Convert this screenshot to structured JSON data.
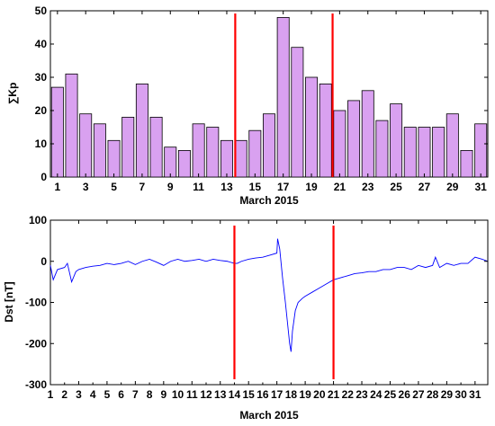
{
  "chart_data": [
    {
      "type": "bar",
      "xlabel": "March 2015",
      "ylabel": "∑Kp",
      "x": [
        1,
        2,
        3,
        4,
        5,
        6,
        7,
        8,
        9,
        10,
        11,
        12,
        13,
        14,
        15,
        16,
        17,
        18,
        19,
        20,
        21,
        22,
        23,
        24,
        25,
        26,
        27,
        28,
        29,
        30,
        31
      ],
      "values": [
        27,
        31,
        19,
        16,
        11,
        18,
        28,
        18,
        9,
        8,
        16,
        15,
        11,
        11,
        14,
        19,
        48,
        39,
        30,
        28,
        20,
        23,
        26,
        17,
        22,
        15,
        15,
        15,
        19,
        8,
        16
      ],
      "xlim": [
        0.5,
        31.5
      ],
      "ylim": [
        0,
        50
      ],
      "yticks": [
        0,
        10,
        20,
        30,
        40,
        50
      ],
      "xtick_labels": [
        "1",
        "3",
        "5",
        "7",
        "9",
        "11",
        "13",
        "15",
        "17",
        "19",
        "21",
        "23",
        "25",
        "27",
        "29",
        "31"
      ],
      "vlines": [
        13.6,
        20.5
      ],
      "bar_color": "#d9a1f0",
      "vline_color": "#ff0000",
      "grid": false
    },
    {
      "type": "line",
      "xlabel": "March 2015",
      "ylabel": "Dst [nT]",
      "xlim": [
        1,
        31.9
      ],
      "ylim": [
        -300,
        100
      ],
      "yticks": [
        -300,
        -200,
        -100,
        0,
        100
      ],
      "xticks": [
        1,
        3,
        5,
        7,
        9,
        11,
        13,
        15,
        17,
        19,
        21,
        23,
        25,
        27,
        29,
        31
      ],
      "xtick_labels": [
        "1",
        "3",
        "5",
        "7",
        "9",
        "11",
        "13",
        "15",
        "17",
        "19",
        "21",
        "23",
        "25",
        "27",
        "29",
        "31"
      ],
      "xtick_labels_minor": [
        "2",
        "4",
        "6",
        "8",
        "10",
        "12",
        "14",
        "16",
        "18",
        "20",
        "22",
        "24",
        "26",
        "28",
        "30"
      ],
      "vlines": [
        14,
        21
      ],
      "line_color": "#0000ff",
      "vline_color": "#ff0000",
      "grid": false,
      "series": [
        {
          "x": [
            1,
            1.2,
            1.5,
            2,
            2.2,
            2.5,
            2.8,
            3,
            3.5,
            4,
            4.5,
            5,
            5.5,
            6,
            6.5,
            7,
            7.5,
            8,
            8.5,
            9,
            9.5,
            10,
            10.5,
            11,
            11.5,
            12,
            12.5,
            13,
            13.5,
            14,
            14.2,
            14.5,
            15,
            15.5,
            16,
            16.5,
            17,
            17.05,
            17.2,
            17.4,
            17.6,
            17.75,
            17.9,
            18,
            18.1,
            18.3,
            18.5,
            18.8,
            19,
            19.5,
            20,
            20.5,
            21,
            21.5,
            22,
            22.5,
            23,
            23.5,
            24,
            24.5,
            25,
            25.5,
            26,
            26.5,
            27,
            27.5,
            28,
            28.2,
            28.5,
            29,
            29.5,
            30,
            30.5,
            31,
            31.5,
            31.9
          ],
          "y": [
            -10,
            -45,
            -20,
            -15,
            -5,
            -50,
            -25,
            -20,
            -15,
            -12,
            -10,
            -5,
            -8,
            -5,
            0,
            -8,
            0,
            5,
            -2,
            -10,
            0,
            5,
            0,
            2,
            5,
            0,
            5,
            2,
            0,
            -5,
            -5,
            0,
            5,
            8,
            10,
            15,
            20,
            55,
            30,
            -40,
            -100,
            -150,
            -200,
            -220,
            -170,
            -120,
            -100,
            -90,
            -85,
            -75,
            -65,
            -55,
            -45,
            -40,
            -35,
            -30,
            -28,
            -25,
            -25,
            -20,
            -20,
            -15,
            -15,
            -20,
            -10,
            -15,
            -10,
            10,
            -15,
            -5,
            -10,
            -5,
            -5,
            10,
            5,
            0
          ]
        }
      ]
    }
  ]
}
